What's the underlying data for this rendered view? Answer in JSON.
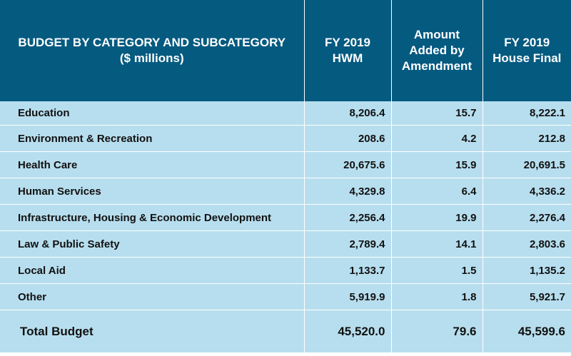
{
  "header": {
    "category": [
      "BUDGET BY CATEGORY AND SUBCATEGORY",
      "($ millions)"
    ],
    "hwm": [
      "FY 2019",
      "HWM"
    ],
    "amendment": [
      "Amount",
      "Added by",
      "Amendment"
    ],
    "final": [
      "FY 2019",
      "House Final"
    ]
  },
  "rows": [
    {
      "category": "Education",
      "hwm": "8,206.4",
      "amendment": "15.7",
      "final": "8,222.1"
    },
    {
      "category": "Environment & Recreation",
      "hwm": "208.6",
      "amendment": "4.2",
      "final": "212.8"
    },
    {
      "category": "Health Care",
      "hwm": "20,675.6",
      "amendment": "15.9",
      "final": "20,691.5"
    },
    {
      "category": "Human Services",
      "hwm": "4,329.8",
      "amendment": "6.4",
      "final": "4,336.2"
    },
    {
      "category": "Infrastructure, Housing & Economic Development",
      "hwm": "2,256.4",
      "amendment": "19.9",
      "final": "2,276.4"
    },
    {
      "category": "Law & Public Safety",
      "hwm": "2,789.4",
      "amendment": "14.1",
      "final": "2,803.6"
    },
    {
      "category": "Local Aid",
      "hwm": "1,133.7",
      "amendment": "1.5",
      "final": "1,135.2"
    },
    {
      "category": "Other",
      "hwm": "5,919.9",
      "amendment": "1.8",
      "final": "5,921.7"
    }
  ],
  "total": {
    "category": "Total Budget",
    "hwm": "45,520.0",
    "amendment": "79.6",
    "final": "45,599.6"
  }
}
